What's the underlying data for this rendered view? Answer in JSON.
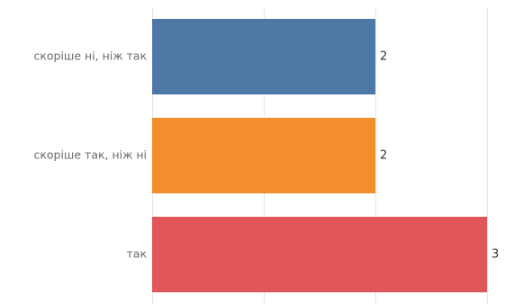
{
  "chart_data": {
    "type": "bar",
    "orientation": "horizontal",
    "categories": [
      "скоріше ні, ніж так",
      "скоріше так, ніж ні",
      "так"
    ],
    "values": [
      2,
      2,
      3
    ],
    "data_labels": [
      "2",
      "2",
      "3"
    ],
    "colors": [
      "#4e79a7",
      "#f28e2b",
      "#e15759"
    ],
    "xlim": [
      0,
      3
    ],
    "grid": true,
    "legend": "none"
  }
}
